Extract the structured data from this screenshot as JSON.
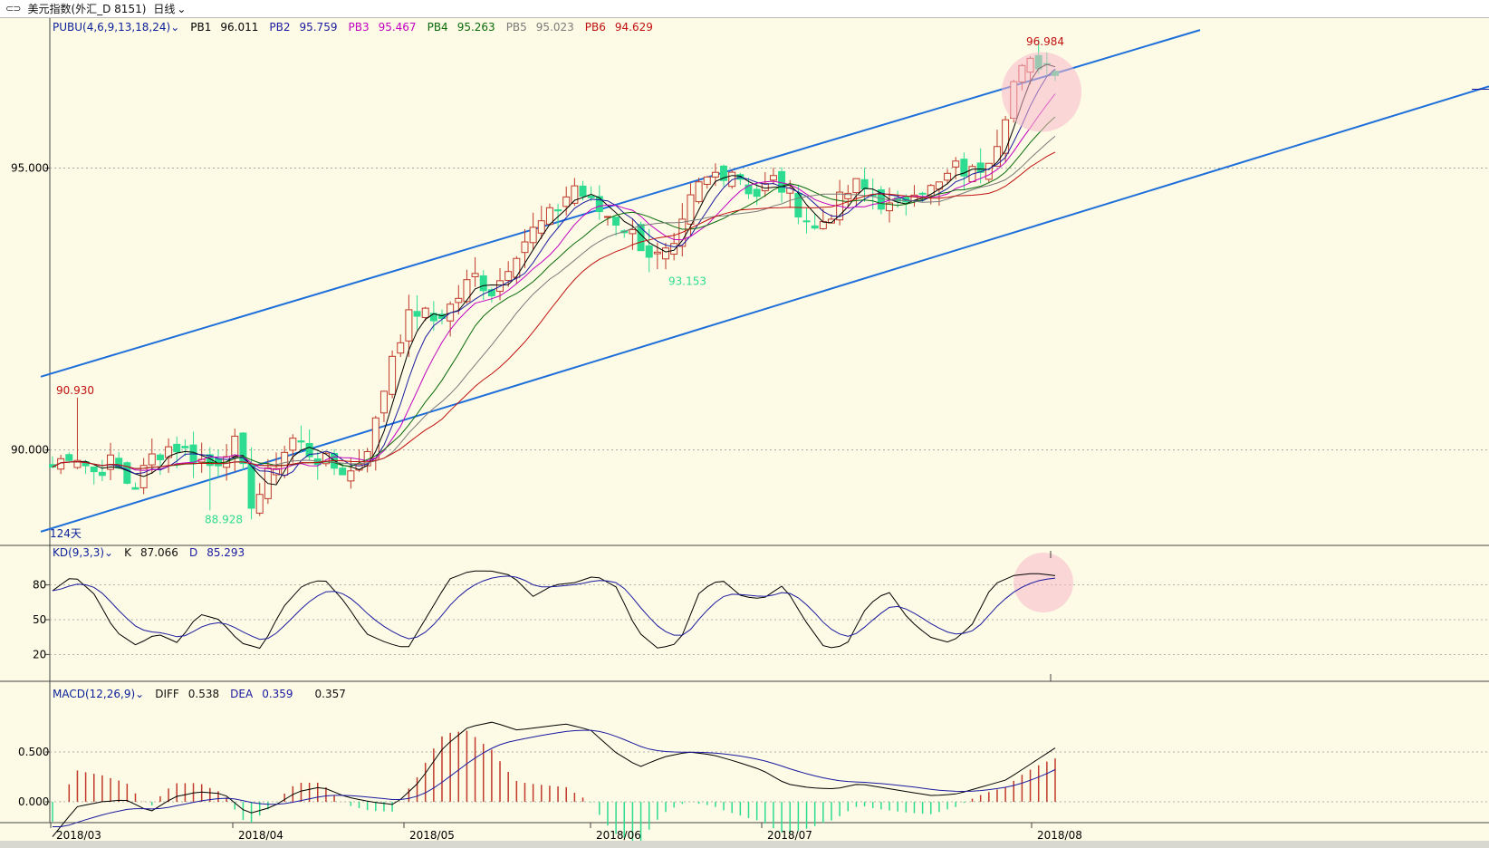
{
  "window": {
    "title": "美元指数(外汇_D 8151)",
    "period": "日线"
  },
  "colors": {
    "background": "#fdfbe5",
    "up": "#c0392b",
    "down": "#2edc91",
    "channel": "#1e6fd9",
    "pb1": "#000000",
    "pb2": "#1a1aa0",
    "pb3": "#c000c0",
    "pb4": "#0a6a0a",
    "pb5": "#7a7a7a",
    "pb6": "#c01010",
    "highlight": "#f7b8cc"
  },
  "main_panel": {
    "indicator": "PUBU(4,6,9,13,18,24)",
    "pb1": {
      "label": "PB1",
      "value": "96.011"
    },
    "pb2": {
      "label": "PB2",
      "value": "95.759"
    },
    "pb3": {
      "label": "PB3",
      "value": "95.467"
    },
    "pb4": {
      "label": "PB4",
      "value": "95.263"
    },
    "pb5": {
      "label": "PB5",
      "value": "95.023"
    },
    "pb6": {
      "label": "PB6",
      "value": "94.629"
    },
    "y_ticks": [
      "95.000",
      "90.000"
    ],
    "annotations": {
      "high": "96.984",
      "left_high": "90.930",
      "low": "88.928",
      "mid_low": "93.153",
      "days": "124天"
    }
  },
  "kd_panel": {
    "indicator": "KD(9,3,3)",
    "k": {
      "label": "K",
      "value": "87.066"
    },
    "d": {
      "label": "D",
      "value": "85.293"
    },
    "y_ticks": [
      "80",
      "50",
      "20"
    ]
  },
  "macd_panel": {
    "indicator": "MACD(12,26,9)",
    "diff": {
      "label": "DIFF",
      "value": "0.538"
    },
    "dea": {
      "label": "DEA",
      "value": "0.359"
    },
    "macd": {
      "value": "0.357"
    },
    "y_ticks": [
      "0.500",
      "0.000"
    ]
  },
  "x_axis": {
    "labels": [
      "2018/03",
      "2018/04",
      "2018/05",
      "2018/06",
      "2018/07",
      "2018/08"
    ]
  },
  "chart_data": {
    "type": "candlestick",
    "y_range": [
      88.5,
      97.5
    ],
    "key_values": {
      "high": 96.984,
      "left_high": 90.93,
      "low": 88.928,
      "mid_low": 93.153
    },
    "close_path": [
      89.7,
      90.0,
      89.6,
      89.8,
      89.3,
      89.9,
      90.1,
      89.9,
      89.7,
      90.2,
      89.0,
      89.7,
      90.2,
      89.9,
      89.7,
      89.6,
      90.3,
      91.8,
      92.5,
      92.3,
      92.6,
      93.1,
      92.8,
      93.5,
      93.9,
      94.2,
      94.7,
      94.3,
      94.1,
      93.8,
      93.4,
      93.5,
      94.6,
      94.9,
      95.0,
      94.5,
      94.8,
      94.4,
      93.9,
      94.3,
      94.7,
      94.5,
      94.2,
      94.7,
      94.6,
      95.0,
      94.9,
      95.4,
      96.6,
      96.9,
      96.8
    ]
  }
}
